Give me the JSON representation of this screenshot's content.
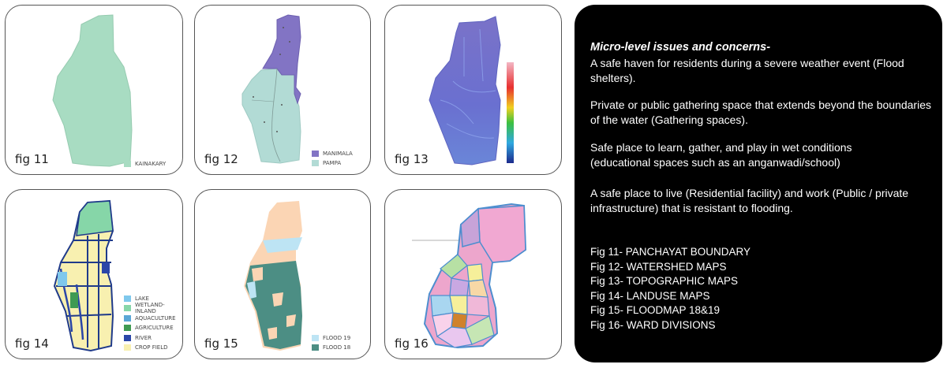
{
  "figures": [
    {
      "label": "fig 11",
      "legend": [
        {
          "text": "KAINAKARY",
          "color": "#a8dcc2"
        }
      ]
    },
    {
      "label": "fig 12",
      "legend": [
        {
          "text": "MANIMALA",
          "color": "#8274c4"
        },
        {
          "text": "PAMPA",
          "color": "#b2dbd5"
        }
      ]
    },
    {
      "label": "fig 13",
      "legend": []
    },
    {
      "label": "fig 14",
      "legend": [
        {
          "text": "LAKE",
          "color": "#7fc8ec"
        },
        {
          "text": "WETLAND-INLAND",
          "color": "#86d6a8"
        },
        {
          "text": "AQUACULTURE",
          "color": "#5aa6d6"
        },
        {
          "text": "AGRICULTURE",
          "color": "#3f9a52"
        },
        {
          "text": "RIVER",
          "color": "#2a46a8"
        },
        {
          "text": "CROP FIELD",
          "color": "#f8f0b0"
        }
      ]
    },
    {
      "label": "fig 15",
      "legend": [
        {
          "text": "FLOOD 19",
          "color": "#bde4f4"
        },
        {
          "text": "FLOOD 18",
          "color": "#4c8e84"
        }
      ]
    },
    {
      "label": "fig 16",
      "legend": []
    }
  ],
  "panel": {
    "heading": "Micro-level issues and concerns-",
    "paragraphs": [
      "A safe haven for residents during a severe weather event (Flood shelters).",
      "Private or public gathering space that extends beyond the boundaries of the water (Gathering spaces).",
      "Safe place to learn, gather, and play in wet conditions (educational spaces such as an anganwadi/school)",
      "A safe place to live (Residential facility) and work (Public / private infrastructure) that is resistant to flooding."
    ],
    "captions": [
      "Fig 11- PANCHAYAT BOUNDARY",
      "Fig 12- WATERSHED MAPS",
      "Fig 13- TOPOGRAPHIC MAPS",
      "Fig 14- LANDUSE MAPS",
      "Fig 15- FLOODMAP 18&19",
      "Fig 16- WARD DIVISIONS"
    ]
  }
}
